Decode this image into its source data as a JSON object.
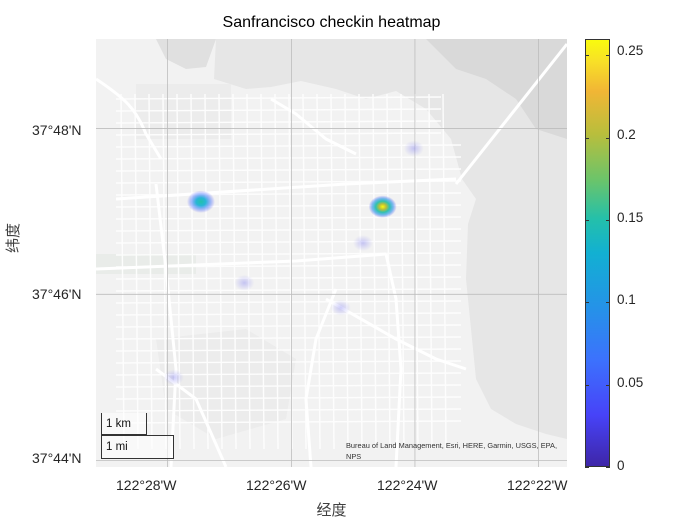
{
  "chart": {
    "title": "Sanfrancisco checkin heatmap",
    "xlabel": "经度",
    "ylabel": "纬度",
    "x_ticks": [
      "122°28'W",
      "122°26'W",
      "122°24'W",
      "122°22'W"
    ],
    "y_ticks": [
      "37°48'N",
      "37°46'N",
      "37°44'N"
    ],
    "scale_bar": {
      "km_label": "1 km",
      "mi_label": "1 mi"
    },
    "attribution": "Bureau of Land Management, Esri, HERE, Garmin, USGS, EPA, NPS",
    "colorbar": {
      "ticks": [
        "0.25",
        "0.2",
        "0.15",
        "0.1",
        "0.05",
        "0"
      ],
      "colormap": "parula",
      "range": [
        0,
        0.26
      ]
    }
  },
  "chart_data": {
    "type": "heatmap",
    "title": "Sanfrancisco checkin heatmap",
    "xlabel": "经度",
    "ylabel": "纬度",
    "xlim": [
      -122.486,
      -122.359
    ],
    "ylim": [
      37.732,
      37.818
    ],
    "x_ticks": [
      -122.4667,
      -122.4333,
      -122.4,
      -122.3667
    ],
    "y_ticks": [
      37.8,
      37.7667,
      37.7333
    ],
    "colorbar_range": [
      0,
      0.26
    ],
    "hotspots": [
      {
        "lon": -122.4087,
        "lat": 37.7843,
        "intensity": 0.26
      },
      {
        "lon": -122.4577,
        "lat": 37.7853,
        "intensity": 0.15
      },
      {
        "lon": -122.4003,
        "lat": 37.796,
        "intensity": 0.04
      },
      {
        "lon": -122.414,
        "lat": 37.777,
        "intensity": 0.03
      },
      {
        "lon": -122.446,
        "lat": 37.769,
        "intensity": 0.02
      },
      {
        "lon": -122.42,
        "lat": 37.764,
        "intensity": 0.02
      },
      {
        "lon": -122.465,
        "lat": 37.75,
        "intensity": 0.015
      }
    ]
  }
}
